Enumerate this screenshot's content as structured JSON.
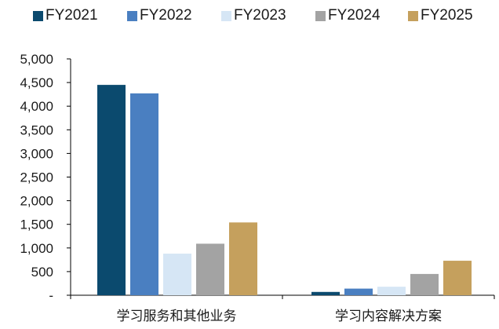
{
  "chart_data": {
    "type": "bar",
    "categories": [
      "学习服务和其他业务",
      "学习内容解决方案"
    ],
    "series": [
      {
        "name": "FY2021",
        "color": "#0b4a6e",
        "values": [
          4450,
          70
        ]
      },
      {
        "name": "FY2022",
        "color": "#4a7fc1",
        "values": [
          4270,
          140
        ]
      },
      {
        "name": "FY2023",
        "color": "#d6e6f5",
        "values": [
          880,
          180
        ]
      },
      {
        "name": "FY2024",
        "color": "#a3a3a3",
        "values": [
          1090,
          450
        ]
      },
      {
        "name": "FY2025",
        "color": "#c5a05d",
        "values": [
          1540,
          730
        ]
      }
    ],
    "ylim": [
      0,
      5000
    ],
    "yticks": [
      0,
      500,
      1000,
      1500,
      2000,
      2500,
      3000,
      3500,
      4000,
      4500,
      5000
    ],
    "ytick_labels": [
      "-",
      "500",
      "1,000",
      "1,500",
      "2,000",
      "2,500",
      "3,000",
      "3,500",
      "4,000",
      "4,500",
      "5,000"
    ],
    "grid": false,
    "legend_position": "top"
  }
}
